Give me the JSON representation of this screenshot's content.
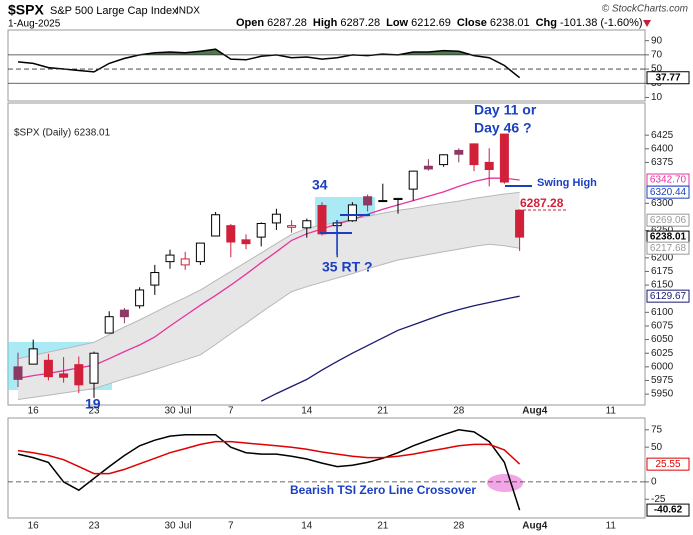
{
  "header": {
    "symbol": "$SPX",
    "name": "S&P 500 Large Cap Index",
    "exchange": "INDX",
    "date": "1-Aug-2025",
    "credit": "© StockCharts.com",
    "quote": [
      {
        "label": "Open",
        "value": 6287.28
      },
      {
        "label": "High",
        "value": 6287.28
      },
      {
        "label": "Low",
        "value": 6212.69
      },
      {
        "label": "Close",
        "value": 6238.01
      }
    ],
    "change": {
      "label": "Chg",
      "value": "-101.38 (-1.60%)"
    }
  },
  "chart_data": [
    {
      "type": "line",
      "ylim": [
        5,
        105
      ],
      "yticks": [
        90,
        70,
        50,
        30,
        10
      ],
      "ref_lines": [
        {
          "value": 70,
          "dash": false
        },
        {
          "value": 50,
          "dash": true
        },
        {
          "value": 30,
          "dash": false
        }
      ],
      "fill_above": 70,
      "fill_color": "#4e7a4e",
      "series": [
        {
          "color": "#000000",
          "values": [
            60,
            58,
            52,
            50,
            48,
            46,
            58,
            65,
            70,
            73,
            74,
            73,
            75,
            78,
            64,
            63,
            68,
            70,
            66,
            67,
            64,
            66,
            70,
            69,
            71,
            70,
            74,
            74,
            76,
            75,
            69,
            66,
            55,
            37.77,
            null,
            null,
            null,
            null,
            null,
            null,
            null,
            null
          ]
        }
      ],
      "last_labels": [
        {
          "value": 37.77,
          "color": "#000000"
        }
      ]
    },
    {
      "type": "candlestick",
      "legend": "$SPX (Daily) 6238.01",
      "ylim": [
        5930,
        6484
      ],
      "yticks": [
        6425,
        6400,
        6375,
        6300,
        6250,
        6200,
        6175,
        6150,
        6100,
        6075,
        6050,
        6025,
        6000,
        5975,
        5950
      ],
      "categories": [
        null,
        "16",
        null,
        null,
        null,
        "23",
        null,
        null,
        null,
        null,
        "30",
        "Jul",
        null,
        null,
        "7",
        null,
        null,
        null,
        null,
        "14",
        null,
        null,
        null,
        null,
        "21",
        null,
        null,
        null,
        null,
        "28",
        null,
        null,
        null,
        null,
        "Aug4",
        null,
        null,
        null,
        null,
        "11",
        null,
        null
      ],
      "open": [
        6000,
        6005,
        6012,
        5987,
        6004,
        5970,
        6062,
        6104,
        6112,
        6150,
        6193,
        6187,
        6193,
        6240,
        6259,
        6233,
        6238,
        6264,
        6256,
        6255,
        6296,
        6259,
        6268,
        6312,
        6305,
        6307,
        6326,
        6368,
        6371,
        6397,
        6409,
        6375,
        6427,
        6287.28,
        null,
        null,
        null,
        null,
        null,
        null,
        null,
        null
      ],
      "high": [
        6026,
        6050,
        6024,
        6018,
        6019,
        6028,
        6102,
        6108,
        6146,
        6187,
        6215,
        6211,
        6227,
        6284,
        6262,
        6243,
        6265,
        6290,
        6269,
        6272,
        6302,
        6266,
        6302,
        6316,
        6336,
        6310,
        6360,
        6381,
        6390,
        6401,
        6410,
        6401,
        6427,
        6287.28,
        null,
        null,
        null,
        null,
        null,
        null,
        null,
        null
      ],
      "low": [
        5963,
        6005,
        5975,
        5971,
        5952,
        5943,
        6062,
        6080,
        6107,
        6132,
        6180,
        6178,
        6187,
        6240,
        6201,
        6216,
        6221,
        6251,
        6246,
        6237,
        6241,
        6201,
        6266,
        6285,
        6303,
        6281,
        6305,
        6360,
        6367,
        6375,
        6359,
        6331,
        6336,
        6212.69,
        null,
        null,
        null,
        null,
        null,
        null,
        null,
        null
      ],
      "close": [
        5977,
        6033,
        5982,
        5981,
        5967,
        6025,
        6092,
        6092,
        6141,
        6173,
        6205,
        6198,
        6227,
        6279,
        6229,
        6226,
        6263,
        6280,
        6259,
        6268,
        6244,
        6264,
        6297,
        6297,
        6305,
        6309,
        6359,
        6363,
        6389,
        6390,
        6371,
        6362,
        6339,
        6238.01,
        null,
        null,
        null,
        null,
        null,
        null,
        null,
        null
      ],
      "up_color": "#000000",
      "down_color": "#d0203a",
      "mixed_color": "#8c3a64",
      "band": {
        "fill": "#e6e6e6",
        "stroke": "#b8b8b8",
        "upper": [
          6015,
          6021,
          6027,
          6033,
          6039,
          6045,
          6059,
          6073,
          6086,
          6100,
          6114,
          6127,
          6141,
          6158,
          6175,
          6192,
          6209,
          6226,
          6243,
          6254,
          6260,
          6265,
          6271,
          6276,
          6282,
          6287,
          6291,
          6296,
          6300,
          6304,
          6309,
          6313,
          6317,
          6320,
          null,
          null,
          null,
          null,
          null,
          null,
          null,
          null
        ],
        "lower": [
          5940,
          5944,
          5948,
          5952,
          5956,
          5960,
          5969,
          5978,
          5986,
          5995,
          6004,
          6013,
          6022,
          6041,
          6061,
          6080,
          6100,
          6119,
          6138,
          6147,
          6155,
          6163,
          6171,
          6180,
          6188,
          6196,
          6201,
          6206,
          6211,
          6216,
          6221,
          6225,
          6222,
          6217.68,
          null,
          null,
          null,
          null,
          null,
          null,
          null,
          null
        ]
      },
      "series": [
        {
          "color": "#e8339f",
          "values": [
            5979,
            5984,
            5988,
            5993,
            5998,
            6003,
            6015,
            6028,
            6040,
            6055,
            6075,
            6094,
            6113,
            6131,
            6150,
            6170,
            6191,
            6211,
            6232,
            6244,
            6253,
            6262,
            6270,
            6280,
            6289,
            6297,
            6305,
            6313,
            6321,
            6331,
            6340,
            6346,
            6346,
            6342.7,
            null,
            null,
            null,
            null,
            null,
            null,
            null,
            null
          ]
        },
        {
          "color": "#1a1a70",
          "values": [
            null,
            null,
            null,
            null,
            null,
            null,
            null,
            null,
            null,
            null,
            null,
            null,
            null,
            null,
            null,
            null,
            5937,
            5951,
            5964,
            5977,
            5994,
            6010,
            6025,
            6039,
            6053,
            6067,
            6077,
            6087,
            6097,
            6105,
            6112,
            6118,
            6124,
            6129.67,
            null,
            null,
            null,
            null,
            null,
            null,
            null,
            null
          ]
        }
      ],
      "right_labels": [
        {
          "value": 6342.7,
          "label": "6342.70",
          "color": "#e8339f"
        },
        {
          "value": 6320.44,
          "label": "6320.44",
          "color": "#1a3fc0"
        },
        {
          "value": 6269.06,
          "label": "6269.06",
          "color": "#999999"
        },
        {
          "value": 6238.01,
          "label": "6238.01",
          "color": "#000000"
        },
        {
          "value": 6217.68,
          "label": "6217.68",
          "color": "#999999"
        },
        {
          "value": 6129.67,
          "label": "6129.67",
          "color": "#1a1a70"
        }
      ],
      "annotations": [
        "Day 11 or",
        "Day 46 ?",
        "Swing High",
        "6287.28",
        "34",
        "35 RT ?",
        "19"
      ]
    },
    {
      "type": "line",
      "ylim": [
        -52,
        92
      ],
      "yticks": [
        75,
        50,
        0,
        -25
      ],
      "ref_lines": [
        {
          "value": 0,
          "dash": true
        }
      ],
      "series": [
        {
          "color": "#000000",
          "values": [
            40,
            35,
            28,
            0,
            -12,
            5,
            22,
            38,
            52,
            60,
            66,
            68,
            68,
            68,
            50,
            42,
            40,
            40,
            37,
            33,
            27,
            22,
            24,
            28,
            34,
            42,
            52,
            60,
            68,
            75,
            72,
            58,
            28,
            -40.62,
            null,
            null,
            null,
            null,
            null,
            null,
            null,
            null
          ]
        },
        {
          "color": "#e00000",
          "values": [
            45,
            42,
            38,
            32,
            22,
            12,
            12,
            18,
            26,
            34,
            42,
            48,
            54,
            58,
            58,
            56,
            54,
            52,
            50,
            47,
            43,
            40,
            37,
            35,
            35,
            37,
            40,
            44,
            48,
            52,
            54,
            54,
            46,
            25.55,
            null,
            null,
            null,
            null,
            null,
            null,
            null,
            null
          ]
        }
      ],
      "last_labels": [
        {
          "value": 25.55,
          "color": "#e00000"
        },
        {
          "value": -40.62,
          "color": "#000000"
        }
      ],
      "annotation": "Bearish TSI Zero Line Crossover"
    }
  ]
}
